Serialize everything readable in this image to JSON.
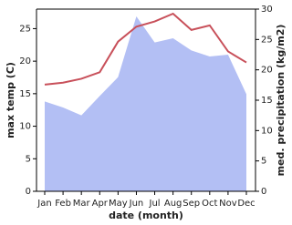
{
  "chart_data": {
    "type": "line-area",
    "x_label": "date (month)",
    "y_label": "max temp (C)",
    "y2_label": "med. precipitation (kg/m2)",
    "categories": [
      "Jan",
      "Feb",
      "Mar",
      "Apr",
      "May",
      "Jun",
      "Jul",
      "Aug",
      "Sep",
      "Oct",
      "Nov",
      "Dec"
    ],
    "series": [
      {
        "name": "max temp (C)",
        "color": "#c8505a",
        "kind": "line",
        "axis": "y",
        "values": [
          16.4,
          16.7,
          17.3,
          18.3,
          23.0,
          25.3,
          26.1,
          27.3,
          24.8,
          25.5,
          21.5,
          19.8
        ]
      },
      {
        "name": "med. precipitation (kg/m2)",
        "color": "#b3bff4",
        "kind": "area",
        "axis": "y2",
        "values": [
          14.8,
          13.8,
          12.5,
          15.7,
          18.8,
          28.8,
          24.5,
          25.2,
          23.2,
          22.2,
          22.5,
          16.0
        ]
      }
    ],
    "ylim": [
      0,
      28
    ],
    "yticks": [
      0,
      5,
      10,
      15,
      20,
      25
    ],
    "y2lim": [
      0,
      30
    ],
    "y2ticks": [
      0,
      5,
      10,
      15,
      20,
      25,
      30
    ]
  }
}
